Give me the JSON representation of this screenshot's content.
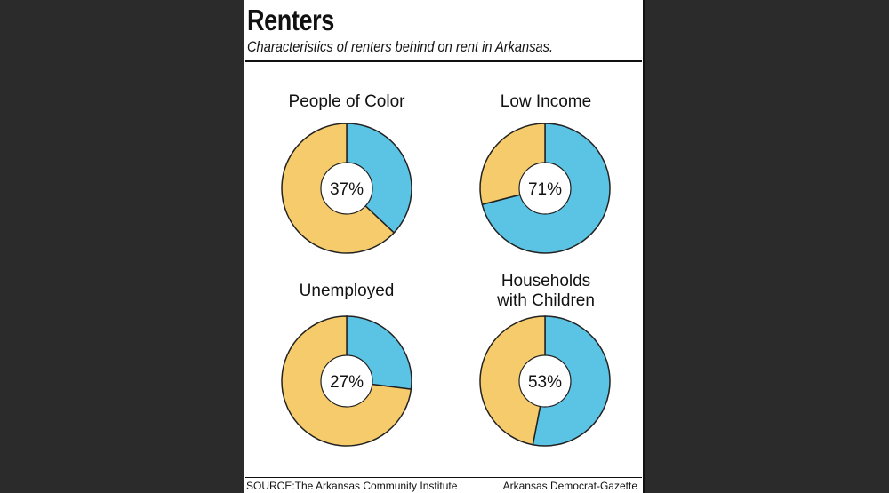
{
  "header": {
    "title": "Renters",
    "subtitle": "Characteristics of renters behind on rent in Arkansas."
  },
  "footer": {
    "source": "SOURCE:The Arkansas Community Institute",
    "credit": "Arkansas Democrat-Gazette"
  },
  "colors": {
    "highlight": "#5bc3e4",
    "remainder": "#f6cb6b",
    "outline": "#222222"
  },
  "chart_data": [
    {
      "type": "pie",
      "title": "People of Color",
      "value": 37,
      "label": "37%"
    },
    {
      "type": "pie",
      "title": "Low Income",
      "value": 71,
      "label": "71%"
    },
    {
      "type": "pie",
      "title": "Unemployed",
      "value": 27,
      "label": "27%"
    },
    {
      "type": "pie",
      "title": "Households with Children",
      "value": 53,
      "label": "53%"
    }
  ]
}
